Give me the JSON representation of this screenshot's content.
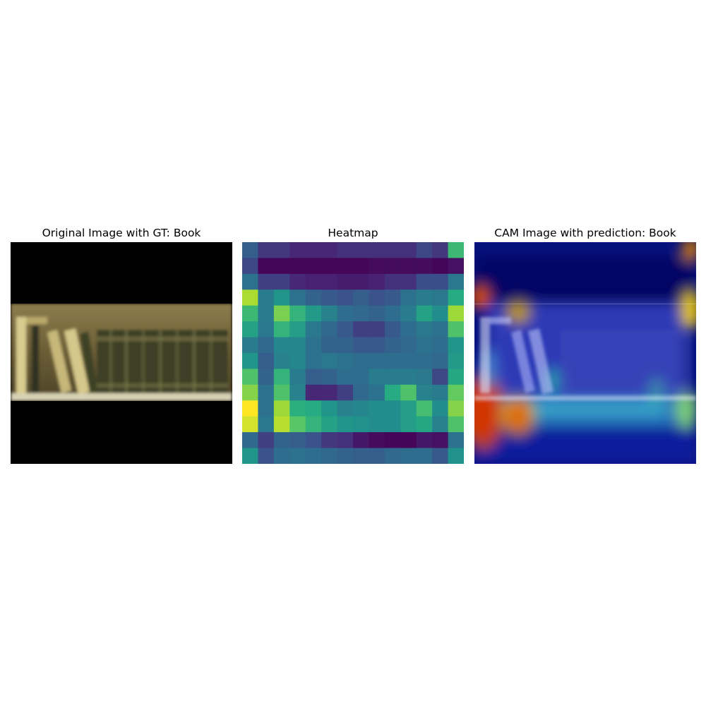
{
  "chart_data": [
    {
      "type": "image",
      "title": "Original Image with GT: Book"
    },
    {
      "type": "heatmap",
      "title": "Heatmap",
      "colormap": "viridis",
      "rows": 14,
      "cols": 14,
      "values": [
        [
          0.3,
          0.18,
          0.18,
          0.14,
          0.14,
          0.14,
          0.16,
          0.16,
          0.16,
          0.16,
          0.16,
          0.22,
          0.18,
          0.68
        ],
        [
          0.22,
          0.02,
          0.02,
          0.02,
          0.02,
          0.02,
          0.02,
          0.02,
          0.04,
          0.04,
          0.04,
          0.04,
          0.02,
          0.06
        ],
        [
          0.38,
          0.2,
          0.2,
          0.14,
          0.12,
          0.12,
          0.1,
          0.1,
          0.12,
          0.16,
          0.16,
          0.24,
          0.24,
          0.4
        ],
        [
          0.88,
          0.42,
          0.52,
          0.38,
          0.32,
          0.28,
          0.26,
          0.3,
          0.26,
          0.28,
          0.38,
          0.42,
          0.4,
          0.62
        ],
        [
          0.68,
          0.42,
          0.8,
          0.66,
          0.54,
          0.44,
          0.36,
          0.34,
          0.32,
          0.36,
          0.42,
          0.58,
          0.48,
          0.86
        ],
        [
          0.58,
          0.4,
          0.66,
          0.56,
          0.4,
          0.34,
          0.28,
          0.2,
          0.2,
          0.28,
          0.36,
          0.4,
          0.38,
          0.72
        ],
        [
          0.42,
          0.34,
          0.46,
          0.46,
          0.38,
          0.32,
          0.32,
          0.28,
          0.28,
          0.32,
          0.34,
          0.38,
          0.36,
          0.52
        ],
        [
          0.52,
          0.3,
          0.44,
          0.46,
          0.38,
          0.4,
          0.38,
          0.36,
          0.36,
          0.36,
          0.36,
          0.36,
          0.34,
          0.54
        ],
        [
          0.72,
          0.32,
          0.66,
          0.42,
          0.3,
          0.32,
          0.36,
          0.36,
          0.42,
          0.42,
          0.42,
          0.4,
          0.22,
          0.6
        ],
        [
          0.82,
          0.38,
          0.72,
          0.44,
          0.14,
          0.14,
          0.2,
          0.34,
          0.38,
          0.62,
          0.72,
          0.44,
          0.42,
          0.76
        ],
        [
          1.0,
          0.38,
          0.86,
          0.64,
          0.62,
          0.52,
          0.44,
          0.46,
          0.48,
          0.48,
          0.56,
          0.7,
          0.48,
          0.82
        ],
        [
          0.94,
          0.4,
          0.9,
          0.74,
          0.66,
          0.58,
          0.52,
          0.5,
          0.48,
          0.48,
          0.56,
          0.6,
          0.44,
          0.72
        ],
        [
          0.34,
          0.2,
          0.32,
          0.3,
          0.26,
          0.18,
          0.16,
          0.08,
          0.04,
          0.02,
          0.02,
          0.08,
          0.06,
          0.38
        ],
        [
          0.52,
          0.26,
          0.36,
          0.38,
          0.36,
          0.34,
          0.32,
          0.3,
          0.3,
          0.34,
          0.36,
          0.36,
          0.28,
          0.5
        ]
      ]
    },
    {
      "type": "image",
      "title": "CAM Image with prediction: Book"
    }
  ]
}
